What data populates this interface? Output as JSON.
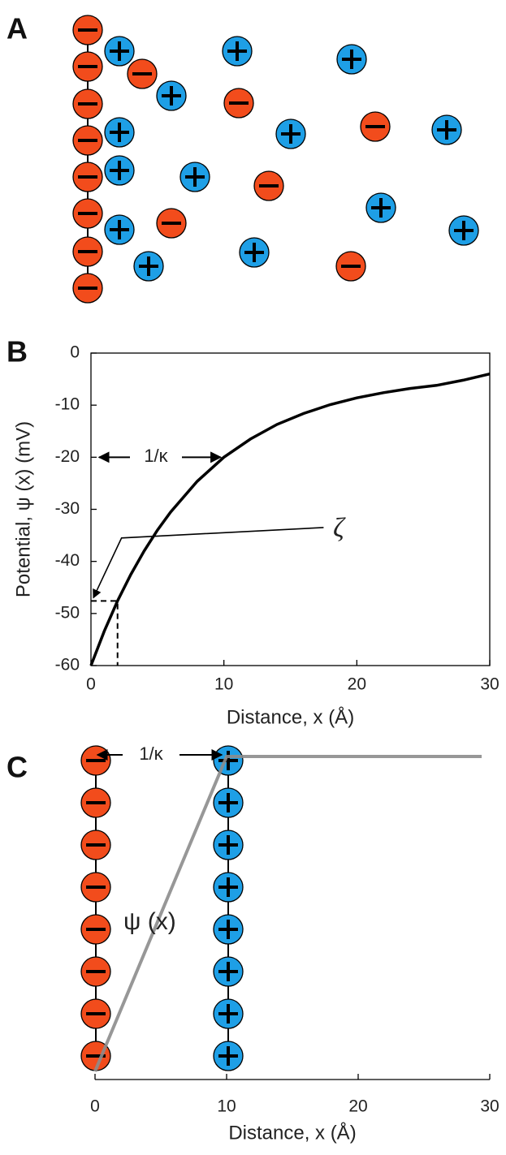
{
  "panel_labels": [
    "A",
    "B",
    "C"
  ],
  "chart_data": [
    {
      "type": "line",
      "xlabel": "Distance, x (Å)",
      "ylabel": "Potential, ψ (x) (mV)",
      "x": [
        0,
        1,
        2,
        3,
        4,
        5,
        6,
        8,
        10,
        12,
        14,
        16,
        18,
        20,
        22,
        24,
        26,
        28,
        30
      ],
      "values": [
        -60,
        -53.4,
        -47.6,
        -42.5,
        -38,
        -34,
        -30.5,
        -24.6,
        -20,
        -16.5,
        -13.7,
        -11.6,
        -9.9,
        -8.6,
        -7.6,
        -6.8,
        -6.2,
        -5.2,
        -4
      ],
      "color": "#000000",
      "xlim": [
        0,
        30
      ],
      "ylim": [
        -60,
        0
      ],
      "xticks": [
        0,
        10,
        20,
        30
      ],
      "yticks": [
        0,
        -10,
        -20,
        -30,
        -40,
        -50,
        -60
      ],
      "annotations": [
        "1/κ",
        "ζ"
      ]
    },
    {
      "type": "schematic",
      "xlabel": "Distance, x (Å)",
      "xlim": [
        0,
        30
      ],
      "xticks": [
        0,
        10,
        20,
        30
      ],
      "color": "#8c8c8c",
      "annotations": [
        "1/κ",
        "ψ (x)"
      ]
    }
  ]
}
